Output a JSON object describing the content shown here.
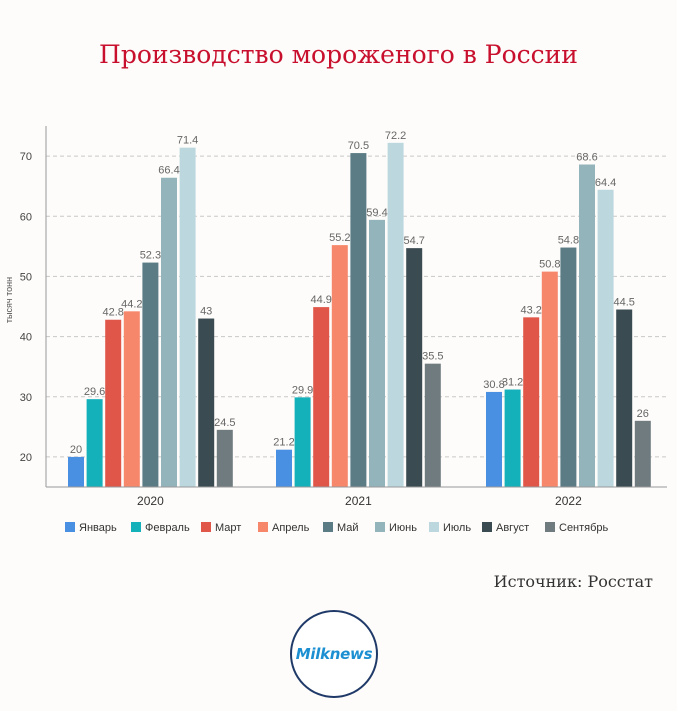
{
  "title": "Производство мороженого в России",
  "source": "Источник: Росстат",
  "logo_text": "Milknews",
  "chart_data": {
    "type": "bar",
    "categories": [
      "2020",
      "2021",
      "2022"
    ],
    "ylabel": "тысяч тонн",
    "ylim": [
      15,
      75
    ],
    "yticks": [
      20,
      30,
      40,
      50,
      60,
      70
    ],
    "grid": true,
    "legend_position": "bottom",
    "series": [
      {
        "name": "Январь",
        "color": "#4a90e2",
        "values": [
          20,
          21.2,
          30.8
        ]
      },
      {
        "name": "Февраль",
        "color": "#14b1bb",
        "values": [
          29.6,
          29.9,
          31.2
        ]
      },
      {
        "name": "Март",
        "color": "#e0574a",
        "values": [
          42.8,
          44.9,
          43.2
        ]
      },
      {
        "name": "Апрель",
        "color": "#f7876a",
        "values": [
          44.2,
          55.2,
          50.8
        ]
      },
      {
        "name": "Май",
        "color": "#5c7c85",
        "values": [
          52.3,
          70.5,
          54.8
        ]
      },
      {
        "name": "Июнь",
        "color": "#93b4bb",
        "values": [
          66.4,
          59.4,
          68.6
        ]
      },
      {
        "name": "Июль",
        "color": "#bcd8de",
        "values": [
          71.4,
          72.2,
          64.4
        ]
      },
      {
        "name": "Август",
        "color": "#3b4b52",
        "values": [
          43,
          54.7,
          44.5
        ]
      },
      {
        "name": "Сентябрь",
        "color": "#6f7b7e",
        "values": [
          24.5,
          35.5,
          26
        ]
      }
    ]
  }
}
